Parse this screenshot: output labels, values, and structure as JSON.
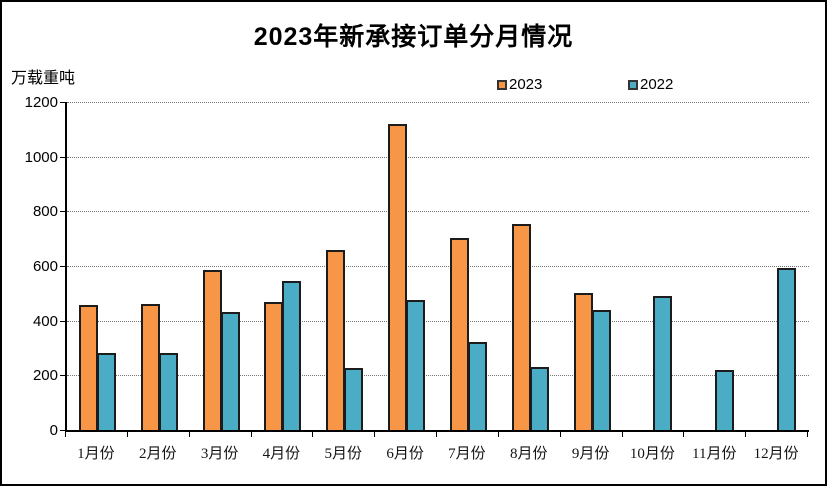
{
  "title": "2023年新承接订单分月情况",
  "unit_label": "万载重吨",
  "colors": {
    "series_2023": "#F79646",
    "series_2022": "#4BACC6",
    "bar_border": "#1C1C1C",
    "gridline": "#767676",
    "axis": "#000000"
  },
  "chart_data": {
    "type": "bar",
    "title": "2023年新承接订单分月情况",
    "ylabel": "万载重吨",
    "categories": [
      "1月份",
      "2月份",
      "3月份",
      "4月份",
      "5月份",
      "6月份",
      "7月份",
      "8月份",
      "9月份",
      "10月份",
      "11月份",
      "12月份"
    ],
    "series": [
      {
        "name": "2023",
        "color": "#F79646",
        "values": [
          459,
          462,
          586,
          467,
          659,
          1120,
          703,
          755,
          502,
          null,
          null,
          null
        ]
      },
      {
        "name": "2022",
        "color": "#4BACC6",
        "values": [
          282,
          283,
          430,
          546,
          228,
          476,
          323,
          231,
          438,
          491,
          219,
          592
        ]
      }
    ],
    "ylim": [
      0,
      1200
    ],
    "yticks": [
      0,
      200,
      400,
      600,
      800,
      1000,
      1200
    ],
    "grid": "horizontal-dotted",
    "legend_position": "top-center"
  }
}
